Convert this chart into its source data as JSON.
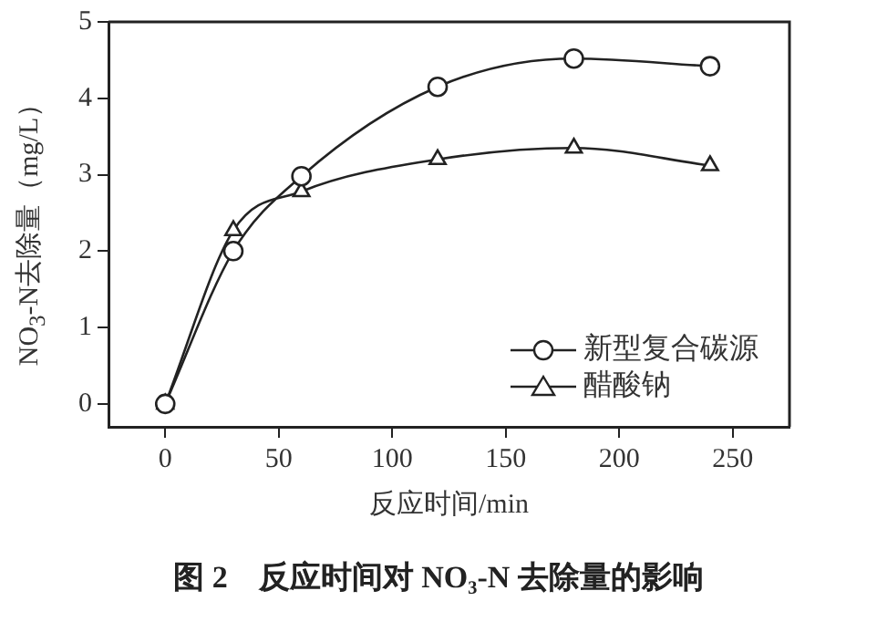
{
  "chart_data": {
    "type": "line",
    "title": "图 2　反应时间对 NO₃-N 去除量的影响",
    "xlabel": "反应时间/min",
    "ylabel": "NO$_{3}$-N去除量（mg/L）",
    "x": [
      0,
      30,
      60,
      120,
      180,
      240
    ],
    "series": [
      {
        "name": "新型复合碳源",
        "color": "#222222",
        "marker": "circle",
        "values": [
          0,
          2.0,
          2.98,
          4.15,
          4.52,
          4.42
        ]
      },
      {
        "name": "醋酸钠",
        "color": "#222222",
        "marker": "triangle",
        "values": [
          0,
          2.27,
          2.78,
          3.2,
          3.35,
          3.12
        ]
      }
    ],
    "xlim": [
      -25,
      275
    ],
    "xticks": [
      0,
      50,
      100,
      150,
      200,
      250
    ],
    "ylim": [
      -0.3,
      5
    ],
    "yticks": [
      0,
      1,
      2,
      3,
      4,
      5
    ],
    "grid": false,
    "legend": "bottom right"
  }
}
